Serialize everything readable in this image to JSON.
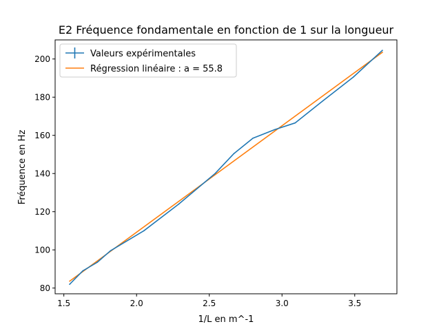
{
  "chart_data": {
    "type": "line",
    "title": "E2 Fréquence fondamentale en fonction de 1 sur la longueur",
    "xlabel": "1/L en m^-1",
    "ylabel": "Fréquence en Hz",
    "xlim": [
      1.44,
      3.79
    ],
    "ylim": [
      77,
      210
    ],
    "xticks": [
      1.5,
      2.0,
      2.5,
      3.0,
      3.5
    ],
    "xtick_labels": [
      "1.5",
      "2.0",
      "2.5",
      "3.0",
      "3.5"
    ],
    "yticks": [
      80,
      100,
      120,
      140,
      160,
      180,
      200
    ],
    "ytick_labels": [
      "80",
      "100",
      "120",
      "140",
      "160",
      "180",
      "200"
    ],
    "grid": false,
    "legend_position": "upper-left",
    "series": [
      {
        "name": "Valeurs expérimentales",
        "color": "#1f77b4",
        "marker": "errorbar",
        "x": [
          1.54,
          1.63,
          1.73,
          1.82,
          2.05,
          2.29,
          2.54,
          2.67,
          2.8,
          2.95,
          3.09,
          3.28,
          3.49,
          3.69
        ],
        "y": [
          82,
          89,
          93.5,
          99.5,
          110,
          124,
          140,
          150.5,
          158.5,
          163,
          166.5,
          178,
          190.5,
          204.5
        ]
      },
      {
        "name": "Régression linéaire : a = 55.8",
        "color": "#ff7f0e",
        "x": [
          1.54,
          3.69
        ],
        "y": [
          83.6,
          203.5
        ]
      }
    ]
  }
}
